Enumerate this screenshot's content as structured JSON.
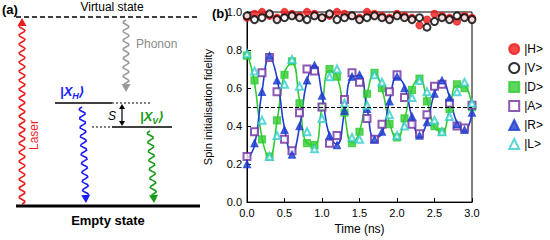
{
  "diagram": {
    "title": "(a)",
    "virtual_state": "Virtual state",
    "phonon": "Phonon",
    "laser": "Laser",
    "excited_states": [
      {
        "prefix": "|X",
        "subscript": "H",
        "suffix": "⟩"
      },
      {
        "prefix": "|X",
        "subscript": "V",
        "suffix": "⟩"
      }
    ],
    "splitting": "S",
    "ground_state": "Empty state"
  },
  "chart_data": {
    "type": "scatter",
    "title": "(b)",
    "x_label": "Time (ns)",
    "y_label": "Spin initialisation fidelity",
    "x": [
      0,
      0.1,
      0.2,
      0.3,
      0.4,
      0.5,
      0.6,
      0.7,
      0.8,
      0.9,
      1.0,
      1.1,
      1.2,
      1.3,
      1.4,
      1.5,
      1.6,
      1.7,
      1.8,
      1.9,
      2.0,
      2.1,
      2.2,
      2.3,
      2.4,
      2.5,
      2.6,
      2.7,
      2.8,
      2.9,
      3.0
    ],
    "series": [
      {
        "name": "|H>",
        "color": "#ee1c1c",
        "marker": "circle",
        "values": [
          0.97,
          0.99,
          1.0,
          0.98,
          0.97,
          1.0,
          0.99,
          0.98,
          1.0,
          0.99,
          0.97,
          0.98,
          1.0,
          0.99,
          0.98,
          0.97,
          1.0,
          0.99,
          0.98,
          0.97,
          0.99,
          0.98,
          0.97,
          0.93,
          0.96,
          0.99,
          0.98,
          0.97,
          0.95,
          0.98,
          0.97
        ]
      },
      {
        "name": "|V>",
        "color": "#000000",
        "marker": "open circle",
        "values": [
          0.98,
          0.96,
          0.97,
          0.99,
          0.96,
          0.97,
          0.98,
          0.97,
          0.96,
          0.98,
          0.97,
          0.99,
          0.96,
          0.97,
          0.98,
          0.96,
          0.97,
          0.98,
          0.97,
          0.96,
          0.98,
          0.97,
          0.96,
          0.97,
          0.92,
          0.95,
          0.97,
          0.96,
          0.98,
          0.97,
          0.96
        ]
      },
      {
        "name": "|D>",
        "color": "#33cc33",
        "marker": "square",
        "values": [
          0.77,
          0.64,
          0.33,
          0.24,
          0.43,
          0.67,
          0.74,
          0.52,
          0.31,
          0.3,
          0.5,
          0.7,
          0.66,
          0.47,
          0.31,
          0.37,
          0.57,
          0.68,
          0.6,
          0.41,
          0.34,
          0.44,
          0.59,
          0.65,
          0.53,
          0.4,
          0.37,
          0.49,
          0.62,
          0.6,
          0.5
        ],
        "fit": [
          0.79,
          0.627,
          0.338,
          0.237,
          0.422,
          0.681,
          0.731,
          0.532,
          0.31,
          0.303,
          0.506,
          0.692,
          0.663,
          0.462,
          0.313,
          0.372,
          0.565,
          0.677,
          0.595,
          0.416,
          0.336,
          0.436,
          0.599,
          0.646,
          0.536,
          0.393,
          0.372,
          0.489,
          0.611,
          0.608,
          0.49
        ],
        "line_style": "solid"
      },
      {
        "name": "|A>",
        "color": "#7030a0",
        "marker": "open square",
        "values": [
          0.24,
          0.37,
          0.68,
          0.76,
          0.58,
          0.33,
          0.27,
          0.47,
          0.7,
          0.69,
          0.5,
          0.31,
          0.35,
          0.54,
          0.68,
          0.63,
          0.44,
          0.33,
          0.41,
          0.58,
          0.67,
          0.55,
          0.41,
          0.36,
          0.46,
          0.61,
          0.62,
          0.52,
          0.4,
          0.39,
          0.51
        ]
      },
      {
        "name": "|R>",
        "color": "#1f3fd0",
        "marker": "triangle",
        "values": [
          0.2,
          0.31,
          0.58,
          0.77,
          0.64,
          0.38,
          0.25,
          0.4,
          0.64,
          0.72,
          0.56,
          0.35,
          0.3,
          0.48,
          0.66,
          0.67,
          0.49,
          0.33,
          0.37,
          0.53,
          0.66,
          0.6,
          0.45,
          0.35,
          0.42,
          0.57,
          0.64,
          0.55,
          0.41,
          0.38,
          0.47
        ],
        "fit": [
          0.226,
          0.298,
          0.582,
          0.762,
          0.653,
          0.387,
          0.256,
          0.393,
          0.637,
          0.721,
          0.566,
          0.348,
          0.305,
          0.473,
          0.659,
          0.666,
          0.495,
          0.339,
          0.363,
          0.532,
          0.658,
          0.608,
          0.446,
          0.351,
          0.42,
          0.571,
          0.638,
          0.554,
          0.417,
          0.376,
          0.47
        ],
        "line_style": "solid"
      },
      {
        "name": "|L>",
        "color": "#33cccc",
        "marker": "open triangle",
        "values": [
          0.78,
          0.69,
          0.43,
          0.24,
          0.35,
          0.62,
          0.75,
          0.61,
          0.37,
          0.28,
          0.44,
          0.66,
          0.7,
          0.52,
          0.34,
          0.33,
          0.51,
          0.67,
          0.63,
          0.46,
          0.35,
          0.4,
          0.55,
          0.64,
          0.58,
          0.43,
          0.37,
          0.45,
          0.58,
          0.63,
          0.52
        ]
      }
    ],
    "reference_line": {
      "value": 0.5,
      "line_style": "dashed"
    },
    "xlim": [
      0,
      3
    ],
    "xticks": [
      {
        "value": 0,
        "label": "0.0"
      },
      {
        "value": 0.5,
        "label": "0.5"
      },
      {
        "value": 1,
        "label": "1.0"
      },
      {
        "value": 1.5,
        "label": "1.5"
      },
      {
        "value": 2,
        "label": "2.0"
      },
      {
        "value": 2.5,
        "label": "2.5"
      },
      {
        "value": 3,
        "label": "3.0"
      }
    ],
    "ylim": [
      0,
      1
    ],
    "yticks": [
      {
        "value": 0,
        "label": "0.0"
      },
      {
        "value": 0.2,
        "label": "0.2"
      },
      {
        "value": 0.4,
        "label": "0.4"
      },
      {
        "value": 0.6,
        "label": "0.6"
      },
      {
        "value": 0.8,
        "label": "0.8"
      },
      {
        "value": 1,
        "label": "1.0"
      }
    ],
    "grid": false,
    "legend": "right"
  }
}
